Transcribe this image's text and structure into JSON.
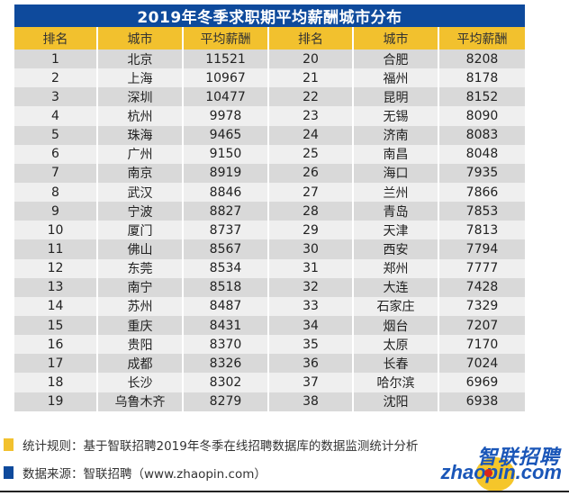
{
  "title": "2019年冬季求职期平均薪酬城市分布",
  "headers": [
    "排名",
    "城市",
    "平均薪酬",
    "排名",
    "城市",
    "平均薪酬"
  ],
  "colors": {
    "title_bg": "#0e4a9c",
    "header_bg": "#f2c12e",
    "row_odd": "#d9d9d9",
    "row_even": "#efefef",
    "bullet_yellow": "#f2c12e",
    "bullet_blue": "#0e4a9c"
  },
  "rows": [
    {
      "rank_a": "1",
      "city_a": "北京",
      "salary_a": "11521",
      "rank_b": "20",
      "city_b": "合肥",
      "salary_b": "8208"
    },
    {
      "rank_a": "2",
      "city_a": "上海",
      "salary_a": "10967",
      "rank_b": "21",
      "city_b": "福州",
      "salary_b": "8178"
    },
    {
      "rank_a": "3",
      "city_a": "深圳",
      "salary_a": "10477",
      "rank_b": "22",
      "city_b": "昆明",
      "salary_b": "8152"
    },
    {
      "rank_a": "4",
      "city_a": "杭州",
      "salary_a": "9978",
      "rank_b": "23",
      "city_b": "无锡",
      "salary_b": "8090"
    },
    {
      "rank_a": "5",
      "city_a": "珠海",
      "salary_a": "9465",
      "rank_b": "24",
      "city_b": "济南",
      "salary_b": "8083"
    },
    {
      "rank_a": "6",
      "city_a": "广州",
      "salary_a": "9150",
      "rank_b": "25",
      "city_b": "南昌",
      "salary_b": "8048"
    },
    {
      "rank_a": "7",
      "city_a": "南京",
      "salary_a": "8919",
      "rank_b": "26",
      "city_b": "海口",
      "salary_b": "7935"
    },
    {
      "rank_a": "8",
      "city_a": "武汉",
      "salary_a": "8846",
      "rank_b": "27",
      "city_b": "兰州",
      "salary_b": "7866"
    },
    {
      "rank_a": "9",
      "city_a": "宁波",
      "salary_a": "8827",
      "rank_b": "28",
      "city_b": "青岛",
      "salary_b": "7853"
    },
    {
      "rank_a": "10",
      "city_a": "厦门",
      "salary_a": "8737",
      "rank_b": "29",
      "city_b": "天津",
      "salary_b": "7813"
    },
    {
      "rank_a": "11",
      "city_a": "佛山",
      "salary_a": "8567",
      "rank_b": "30",
      "city_b": "西安",
      "salary_b": "7794"
    },
    {
      "rank_a": "12",
      "city_a": "东莞",
      "salary_a": "8534",
      "rank_b": "31",
      "city_b": "郑州",
      "salary_b": "7777"
    },
    {
      "rank_a": "13",
      "city_a": "南宁",
      "salary_a": "8518",
      "rank_b": "32",
      "city_b": "大连",
      "salary_b": "7428"
    },
    {
      "rank_a": "14",
      "city_a": "苏州",
      "salary_a": "8487",
      "rank_b": "33",
      "city_b": "石家庄",
      "salary_b": "7329"
    },
    {
      "rank_a": "15",
      "city_a": "重庆",
      "salary_a": "8431",
      "rank_b": "34",
      "city_b": "烟台",
      "salary_b": "7207"
    },
    {
      "rank_a": "16",
      "city_a": "贵阳",
      "salary_a": "8370",
      "rank_b": "35",
      "city_b": "太原",
      "salary_b": "7170"
    },
    {
      "rank_a": "17",
      "city_a": "成都",
      "salary_a": "8326",
      "rank_b": "36",
      "city_b": "长春",
      "salary_b": "7024"
    },
    {
      "rank_a": "18",
      "city_a": "长沙",
      "salary_a": "8302",
      "rank_b": "37",
      "city_b": "哈尔滨",
      "salary_b": "6969"
    },
    {
      "rank_a": "19",
      "city_a": "乌鲁木齐",
      "salary_a": "8279",
      "rank_b": "38",
      "city_b": "沈阳",
      "salary_b": "6938"
    }
  ],
  "footer": {
    "note_rule": "统计规则：基于智联招聘2019年冬季在线招聘数据库的数据监测统计分析",
    "note_source": "数据来源：智联招聘（www.zhaopin.com）",
    "logo_cn": "智联招聘",
    "logo_en": "zhaopin.com"
  },
  "chart_data": {
    "type": "table",
    "title": "2019年冬季求职期平均薪酬城市分布",
    "columns": [
      "排名",
      "城市",
      "平均薪酬"
    ],
    "rows": [
      [
        1,
        "北京",
        11521
      ],
      [
        2,
        "上海",
        10967
      ],
      [
        3,
        "深圳",
        10477
      ],
      [
        4,
        "杭州",
        9978
      ],
      [
        5,
        "珠海",
        9465
      ],
      [
        6,
        "广州",
        9150
      ],
      [
        7,
        "南京",
        8919
      ],
      [
        8,
        "武汉",
        8846
      ],
      [
        9,
        "宁波",
        8827
      ],
      [
        10,
        "厦门",
        8737
      ],
      [
        11,
        "佛山",
        8567
      ],
      [
        12,
        "东莞",
        8534
      ],
      [
        13,
        "南宁",
        8518
      ],
      [
        14,
        "苏州",
        8487
      ],
      [
        15,
        "重庆",
        8431
      ],
      [
        16,
        "贵阳",
        8370
      ],
      [
        17,
        "成都",
        8326
      ],
      [
        18,
        "长沙",
        8302
      ],
      [
        19,
        "乌鲁木齐",
        8279
      ],
      [
        20,
        "合肥",
        8208
      ],
      [
        21,
        "福州",
        8178
      ],
      [
        22,
        "昆明",
        8152
      ],
      [
        23,
        "无锡",
        8090
      ],
      [
        24,
        "济南",
        8083
      ],
      [
        25,
        "南昌",
        8048
      ],
      [
        26,
        "海口",
        7935
      ],
      [
        27,
        "兰州",
        7866
      ],
      [
        28,
        "青岛",
        7853
      ],
      [
        29,
        "天津",
        7813
      ],
      [
        30,
        "西安",
        7794
      ],
      [
        31,
        "郑州",
        7777
      ],
      [
        32,
        "大连",
        7428
      ],
      [
        33,
        "石家庄",
        7329
      ],
      [
        34,
        "烟台",
        7207
      ],
      [
        35,
        "太原",
        7170
      ],
      [
        36,
        "长春",
        7024
      ],
      [
        37,
        "哈尔滨",
        6969
      ],
      [
        38,
        "沈阳",
        6938
      ]
    ]
  }
}
